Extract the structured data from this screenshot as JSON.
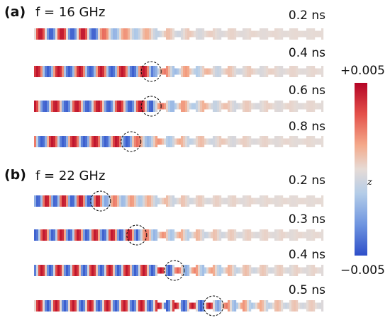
{
  "panels": [
    {
      "label": "(a)",
      "frequency": "f = 16 GHz",
      "rows": [
        {
          "time": "0.2 ns",
          "marker_pos": null
        },
        {
          "time": "0.4 ns",
          "marker_pos": 0.405
        },
        {
          "time": "0.6 ns",
          "marker_pos": 0.405
        },
        {
          "time": "0.8 ns",
          "marker_pos": 0.335
        }
      ]
    },
    {
      "label": "(b)",
      "frequency": "f = 22 GHz",
      "rows": [
        {
          "time": "0.2 ns",
          "marker_pos": 0.23
        },
        {
          "time": "0.3 ns",
          "marker_pos": 0.355
        },
        {
          "time": "0.4 ns",
          "marker_pos": 0.485
        },
        {
          "time": "0.5 ns",
          "marker_pos": 0.62
        }
      ]
    }
  ],
  "colorbar": {
    "max_label": "+0.005",
    "min_label": "−0.005",
    "quantity": "m",
    "subscript": "z",
    "colors": [
      "#b40426",
      "#e4504a",
      "#f4a98a",
      "#e8d6cc",
      "#b4cde8",
      "#6f95e0",
      "#2e4fc9"
    ]
  }
}
